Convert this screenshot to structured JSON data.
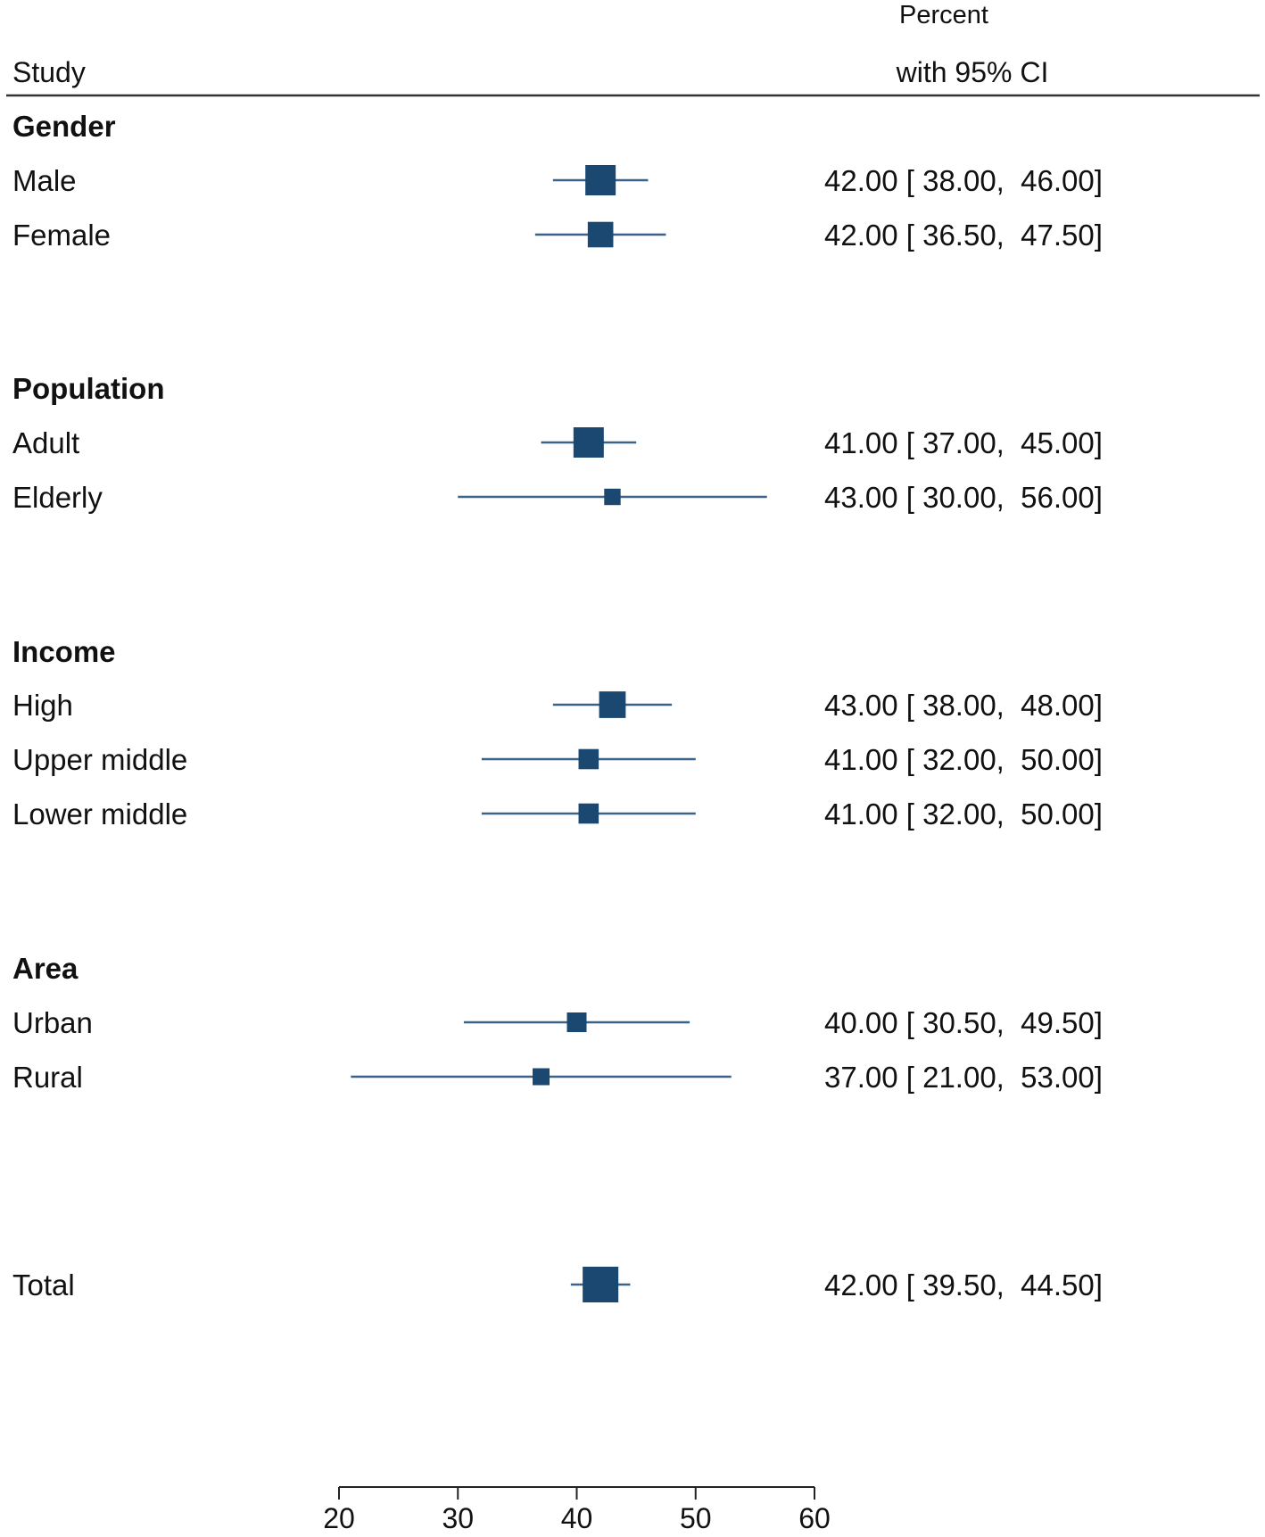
{
  "chart_data": {
    "type": "forest",
    "header": {
      "study_label": "Study",
      "stat_line1": "Percent",
      "stat_line2": "with 95% CI"
    },
    "marker_color": "#1b4870",
    "line_color": "#3b6288",
    "axis": {
      "min": 20,
      "max": 60,
      "ticks": [
        20,
        30,
        40,
        50,
        60
      ],
      "tick_labels": [
        "20",
        "30",
        "40",
        "50",
        "60"
      ]
    },
    "groups": [
      {
        "name": "Gender",
        "rows": [
          {
            "label": "Male",
            "est": 42.0,
            "lo": 38.0,
            "hi": 46.0,
            "weight": 0.8,
            "text": "42.00 [ 38.00,  46.00]"
          },
          {
            "label": "Female",
            "est": 42.0,
            "lo": 36.5,
            "hi": 47.5,
            "weight": 0.62,
            "text": "42.00 [ 36.50,  47.50]"
          }
        ]
      },
      {
        "name": "Population",
        "rows": [
          {
            "label": "Adult",
            "est": 41.0,
            "lo": 37.0,
            "hi": 45.0,
            "weight": 0.8,
            "text": "41.00 [ 37.00,  45.00]"
          },
          {
            "label": "Elderly",
            "est": 43.0,
            "lo": 30.0,
            "hi": 56.0,
            "weight": 0.28,
            "text": "43.00 [ 30.00,  56.00]"
          }
        ]
      },
      {
        "name": "Income",
        "rows": [
          {
            "label": "High",
            "est": 43.0,
            "lo": 38.0,
            "hi": 48.0,
            "weight": 0.66,
            "text": "43.00 [ 38.00,  48.00]"
          },
          {
            "label": "Upper middle",
            "est": 41.0,
            "lo": 32.0,
            "hi": 50.0,
            "weight": 0.42,
            "text": "41.00 [ 32.00,  50.00]"
          },
          {
            "label": "Lower middle",
            "est": 41.0,
            "lo": 32.0,
            "hi": 50.0,
            "weight": 0.42,
            "text": "41.00 [ 32.00,  50.00]"
          }
        ]
      },
      {
        "name": "Area",
        "rows": [
          {
            "label": "Urban",
            "est": 40.0,
            "lo": 30.5,
            "hi": 49.5,
            "weight": 0.4,
            "text": "40.00 [ 30.50,  49.50]"
          },
          {
            "label": "Rural",
            "est": 37.0,
            "lo": 21.0,
            "hi": 53.0,
            "weight": 0.3,
            "text": "37.00 [ 21.00,  53.00]"
          }
        ]
      }
    ],
    "total": {
      "label": "Total",
      "est": 42.0,
      "lo": 39.5,
      "hi": 44.5,
      "weight": 1.0,
      "text": "42.00 [ 39.50,  44.50]"
    }
  }
}
